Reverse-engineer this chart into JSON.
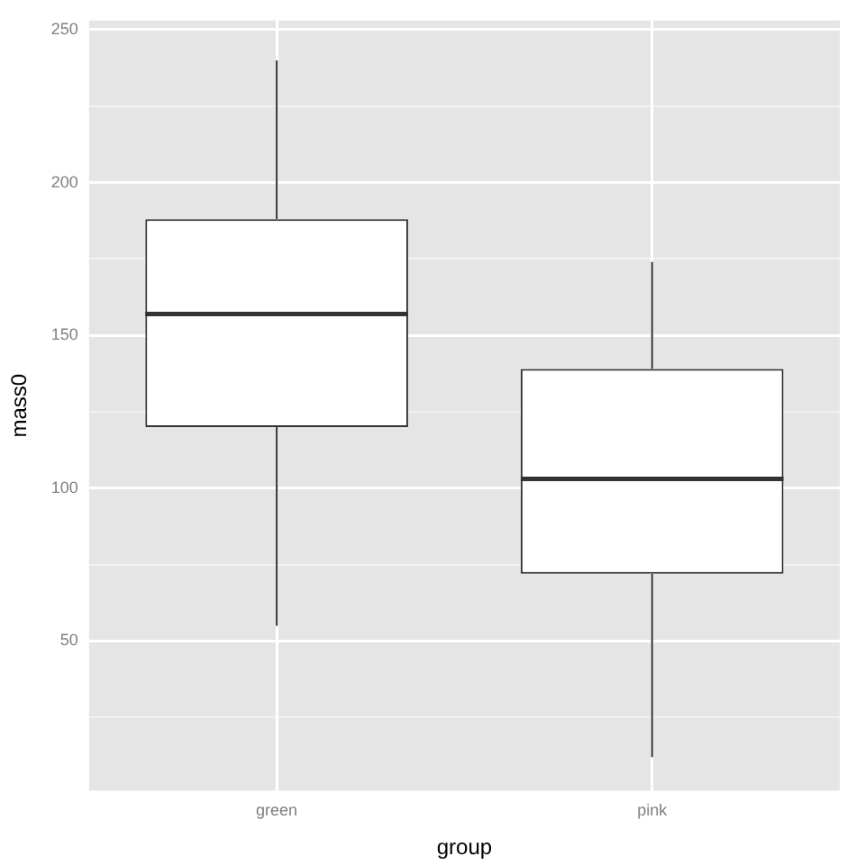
{
  "chart_data": {
    "type": "box",
    "xlabel": "group",
    "ylabel": "mass0",
    "categories": [
      "green",
      "pink"
    ],
    "boxes": [
      {
        "low": 55,
        "q1": 120,
        "median": 157,
        "q3": 188,
        "high": 240
      },
      {
        "low": 12,
        "q1": 72,
        "median": 103,
        "q3": 139,
        "high": 174
      }
    ],
    "ylim": [
      1,
      253
    ],
    "yticks": [
      {
        "value": 25,
        "label": null
      },
      50,
      {
        "value": 75,
        "label": null
      },
      100,
      {
        "value": 125,
        "label": null
      },
      150,
      {
        "value": 175,
        "label": null
      },
      200,
      {
        "value": 225,
        "label": null
      },
      250
    ],
    "grid": true,
    "legend": false
  }
}
